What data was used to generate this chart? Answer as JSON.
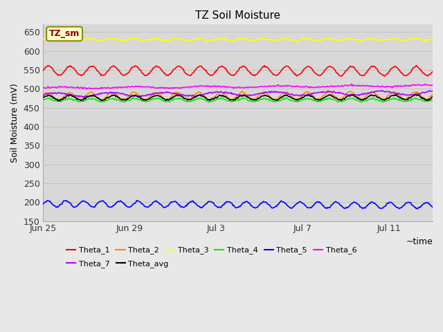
{
  "title": "TZ Soil Moisture",
  "ylabel": "Soil Moisture (mV)",
  "xlabel": "~time",
  "ylim": [
    150,
    670
  ],
  "yticks": [
    150,
    200,
    250,
    300,
    350,
    400,
    450,
    500,
    550,
    600,
    650
  ],
  "num_days": 18,
  "num_points": 500,
  "legend_label": "TZ_sm",
  "series": [
    {
      "name": "Theta_1",
      "color": "#ff0000",
      "base": 548,
      "amplitude": 12,
      "trend": -0.15,
      "freq": 1.0,
      "phase": 0.0
    },
    {
      "name": "Theta_2",
      "color": "#ff8800",
      "base": 480,
      "amplitude": 10,
      "trend": 0.2,
      "freq": 1.0,
      "phase": 0.3
    },
    {
      "name": "Theta_3",
      "color": "#ffff00",
      "base": 630,
      "amplitude": 3,
      "trend": 0.0,
      "freq": 1.0,
      "phase": 0.5
    },
    {
      "name": "Theta_4",
      "color": "#00ee00",
      "base": 470,
      "amplitude": 4,
      "trend": 0.0,
      "freq": 1.0,
      "phase": 0.2
    },
    {
      "name": "Theta_5",
      "color": "#0000ff",
      "base": 196,
      "amplitude": 8,
      "trend": -0.5,
      "freq": 1.2,
      "phase": 0.0
    },
    {
      "name": "Theta_6",
      "color": "#ff00ff",
      "base": 502,
      "amplitude": 2,
      "trend": 0.6,
      "freq": 0.3,
      "phase": 0.0
    },
    {
      "name": "Theta_7",
      "color": "#aa00ff",
      "base": 484,
      "amplitude": 5,
      "trend": 0.5,
      "freq": 0.4,
      "phase": 0.0
    },
    {
      "name": "Theta_avg",
      "color": "#000000",
      "base": 476,
      "amplitude": 6,
      "trend": 0.1,
      "freq": 1.0,
      "phase": 0.1
    }
  ],
  "bg_color": "#e8e8e8",
  "plot_bg_color": "#d8d8d8",
  "xtick_labels": [
    "Jun 25",
    "Jun 29",
    "Jul 3",
    "Jul 7",
    "Jul 11"
  ],
  "xtick_positions": [
    0,
    4,
    8,
    12,
    16
  ]
}
